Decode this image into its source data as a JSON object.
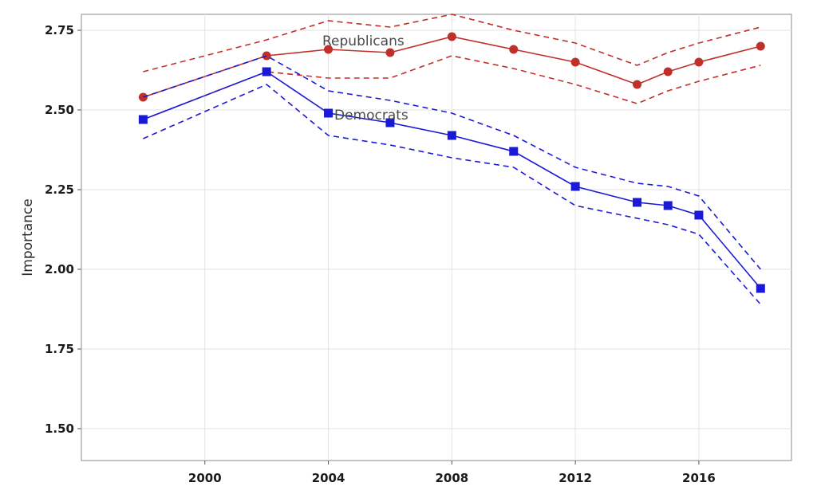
{
  "chart_data": {
    "type": "line",
    "title": "",
    "xlabel": "",
    "ylabel": "Importance",
    "xlim": [
      1996,
      2019
    ],
    "ylim": [
      1.4,
      2.8
    ],
    "x_ticks": [
      2000,
      2004,
      2008,
      2012,
      2016
    ],
    "y_ticks": [
      1.5,
      1.75,
      2.0,
      2.25,
      2.5,
      2.75
    ],
    "y_tick_labels": [
      "1.50",
      "1.75",
      "2.00",
      "2.25",
      "2.50",
      "2.75"
    ],
    "grid": true,
    "legend": "none",
    "series": [
      {
        "name": "Republicans",
        "color": "#c0302b",
        "marker": "circle",
        "x": [
          1998,
          2002,
          2004,
          2006,
          2008,
          2010,
          2012,
          2014,
          2015,
          2016,
          2018
        ],
        "values": [
          2.54,
          2.67,
          2.69,
          2.68,
          2.73,
          2.69,
          2.65,
          2.58,
          2.62,
          2.65,
          2.7
        ],
        "upper": [
          2.62,
          2.72,
          2.78,
          2.76,
          2.8,
          2.75,
          2.71,
          2.64,
          2.68,
          2.71,
          2.76
        ],
        "lower": [
          2.47,
          2.62,
          2.6,
          2.6,
          2.67,
          2.63,
          2.58,
          2.52,
          2.56,
          2.59,
          2.64
        ]
      },
      {
        "name": "Democrats",
        "color": "#1a1ad6",
        "marker": "square",
        "x": [
          1998,
          2002,
          2004,
          2006,
          2008,
          2010,
          2012,
          2014,
          2015,
          2016,
          2018
        ],
        "values": [
          2.47,
          2.62,
          2.49,
          2.46,
          2.42,
          2.37,
          2.26,
          2.21,
          2.2,
          2.17,
          1.94
        ],
        "upper": [
          2.54,
          2.67,
          2.56,
          2.53,
          2.49,
          2.42,
          2.32,
          2.27,
          2.26,
          2.23,
          2.0
        ],
        "lower": [
          2.41,
          2.58,
          2.42,
          2.39,
          2.35,
          2.32,
          2.2,
          2.16,
          2.14,
          2.11,
          1.89
        ]
      }
    ],
    "annotations": [
      {
        "text": "Republicans",
        "series": 0
      },
      {
        "text": "Democrats",
        "series": 1
      }
    ]
  }
}
